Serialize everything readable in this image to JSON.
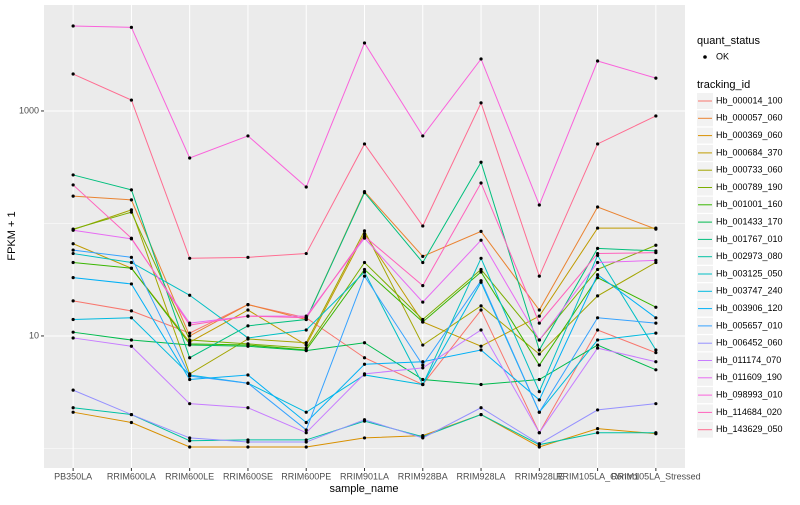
{
  "chart_data": {
    "type": "line",
    "x_label": "sample_name",
    "y_label": "FPKM + 1",
    "categories": [
      "PB350LA",
      "RRIM600LA",
      "RRIM600LE",
      "RRIM600SE",
      "RRIM600PE",
      "RRIM901LA",
      "RRIM928BA",
      "RRIM928LA",
      "RRIM928LE",
      "RRIM105LA_Control",
      "RRIM105LA_Stressed"
    ],
    "log_y": true,
    "grid": true,
    "ylim": [
      0.67,
      8750
    ],
    "yticks": [
      10,
      1000
    ],
    "y_minor_grid": [
      1,
      100
    ],
    "point_legend": {
      "title": "quant_status",
      "labels": [
        "OK"
      ]
    },
    "legend_title": "tracking_id",
    "series": [
      {
        "name": "Hb_000014_100",
        "color": "#F8766D",
        "values": [
          20.5,
          16.7,
          10.6,
          19,
          14.5,
          6.4,
          3.7,
          17,
          1.38,
          11.3,
          7.1
        ]
      },
      {
        "name": "Hb_000057_060",
        "color": "#EA8331",
        "values": [
          175,
          162,
          10,
          19,
          14,
          192,
          51,
          85,
          17,
          140,
          89
        ]
      },
      {
        "name": "Hb_000369_060",
        "color": "#D89000",
        "values": [
          2.1,
          1.7,
          1.03,
          1.03,
          1.03,
          1.24,
          1.3,
          2,
          1.03,
          1.5,
          1.35
        ]
      },
      {
        "name": "Hb_000684_370",
        "color": "#C09B00",
        "values": [
          66,
          40,
          8.8,
          17,
          8.3,
          81,
          13.3,
          8.1,
          15,
          91,
          91
        ]
      },
      {
        "name": "Hb_000733_060",
        "color": "#A3A500",
        "values": [
          88,
          132,
          4.6,
          9.4,
          8.7,
          86,
          8.3,
          18.5,
          6.9,
          22.7,
          45
        ]
      },
      {
        "name": "Hb_000789_190",
        "color": "#7CAE00",
        "values": [
          89,
          126,
          9.2,
          8.5,
          7.8,
          45,
          14,
          39,
          9.2,
          39,
          64
        ]
      },
      {
        "name": "Hb_001001_160",
        "color": "#39B600",
        "values": [
          45,
          40,
          8.5,
          8.3,
          7.5,
          39,
          13.3,
          37,
          5.5,
          33,
          18
        ]
      },
      {
        "name": "Hb_001433_170",
        "color": "#00BB4E",
        "values": [
          10.8,
          9.2,
          8.3,
          8.1,
          7.4,
          8.7,
          4.1,
          3.7,
          4.1,
          8.3,
          5
        ]
      },
      {
        "name": "Hb_001767_010",
        "color": "#00BF7D",
        "values": [
          270,
          199,
          6.4,
          12.3,
          14,
          188,
          45,
          350,
          7.5,
          60,
          57
        ]
      },
      {
        "name": "Hb_002973_080",
        "color": "#00C1A3",
        "values": [
          2.3,
          2,
          1.17,
          1.19,
          1.19,
          1.75,
          1.27,
          2,
          1.08,
          1.38,
          1.38
        ]
      },
      {
        "name": "Hb_003125_050",
        "color": "#00BFC4",
        "values": [
          54,
          45,
          23,
          9.6,
          11.3,
          37,
          3.7,
          49,
          3.2,
          52,
          7.5
        ]
      },
      {
        "name": "Hb_003747_240",
        "color": "#00BAE0",
        "values": [
          14,
          14.5,
          4.5,
          3.8,
          2.1,
          4.5,
          3.7,
          30,
          2.1,
          9.2,
          10.6
        ]
      },
      {
        "name": "Hb_003906_120",
        "color": "#00B0F6",
        "values": [
          33,
          29,
          4.1,
          4.5,
          1.7,
          5.6,
          5.9,
          7.5,
          2.7,
          35,
          14.5
        ]
      },
      {
        "name": "Hb_005657_010",
        "color": "#35A2FF",
        "values": [
          58,
          50,
          4.4,
          3.8,
          1.46,
          34,
          5.5,
          31,
          2.1,
          14.5,
          13
        ]
      },
      {
        "name": "Hb_006452_060",
        "color": "#9590FF",
        "values": [
          3.3,
          2,
          1.24,
          1.14,
          1.14,
          1.8,
          1.24,
          2.3,
          1.1,
          2.2,
          2.5
        ]
      },
      {
        "name": "Hb_011174_070",
        "color": "#C77CFF",
        "values": [
          9.6,
          8.1,
          2.5,
          2.3,
          1.38,
          4.6,
          5.2,
          11.3,
          1.38,
          7.8,
          5.9
        ]
      },
      {
        "name": "Hb_011609_190",
        "color": "#E76BF3",
        "values": [
          87,
          73,
          13,
          15,
          15,
          74,
          20,
          71,
          9.2,
          45,
          47
        ]
      },
      {
        "name": "Hb_098993_010",
        "color": "#FA62DB",
        "values": [
          5700,
          5540,
          382,
          600,
          211,
          4020,
          600,
          2900,
          146,
          2780,
          1960
        ]
      },
      {
        "name": "Hb_114684_020",
        "color": "#FF62BC",
        "values": [
          220,
          74,
          12.5,
          15,
          14.5,
          77,
          28,
          229,
          13,
          54,
          55
        ]
      },
      {
        "name": "Hb_143629_050",
        "color": "#FF6C91",
        "values": [
          2130,
          1250,
          49,
          50,
          54,
          509,
          95,
          1180,
          34,
          509,
          903
        ]
      }
    ]
  }
}
